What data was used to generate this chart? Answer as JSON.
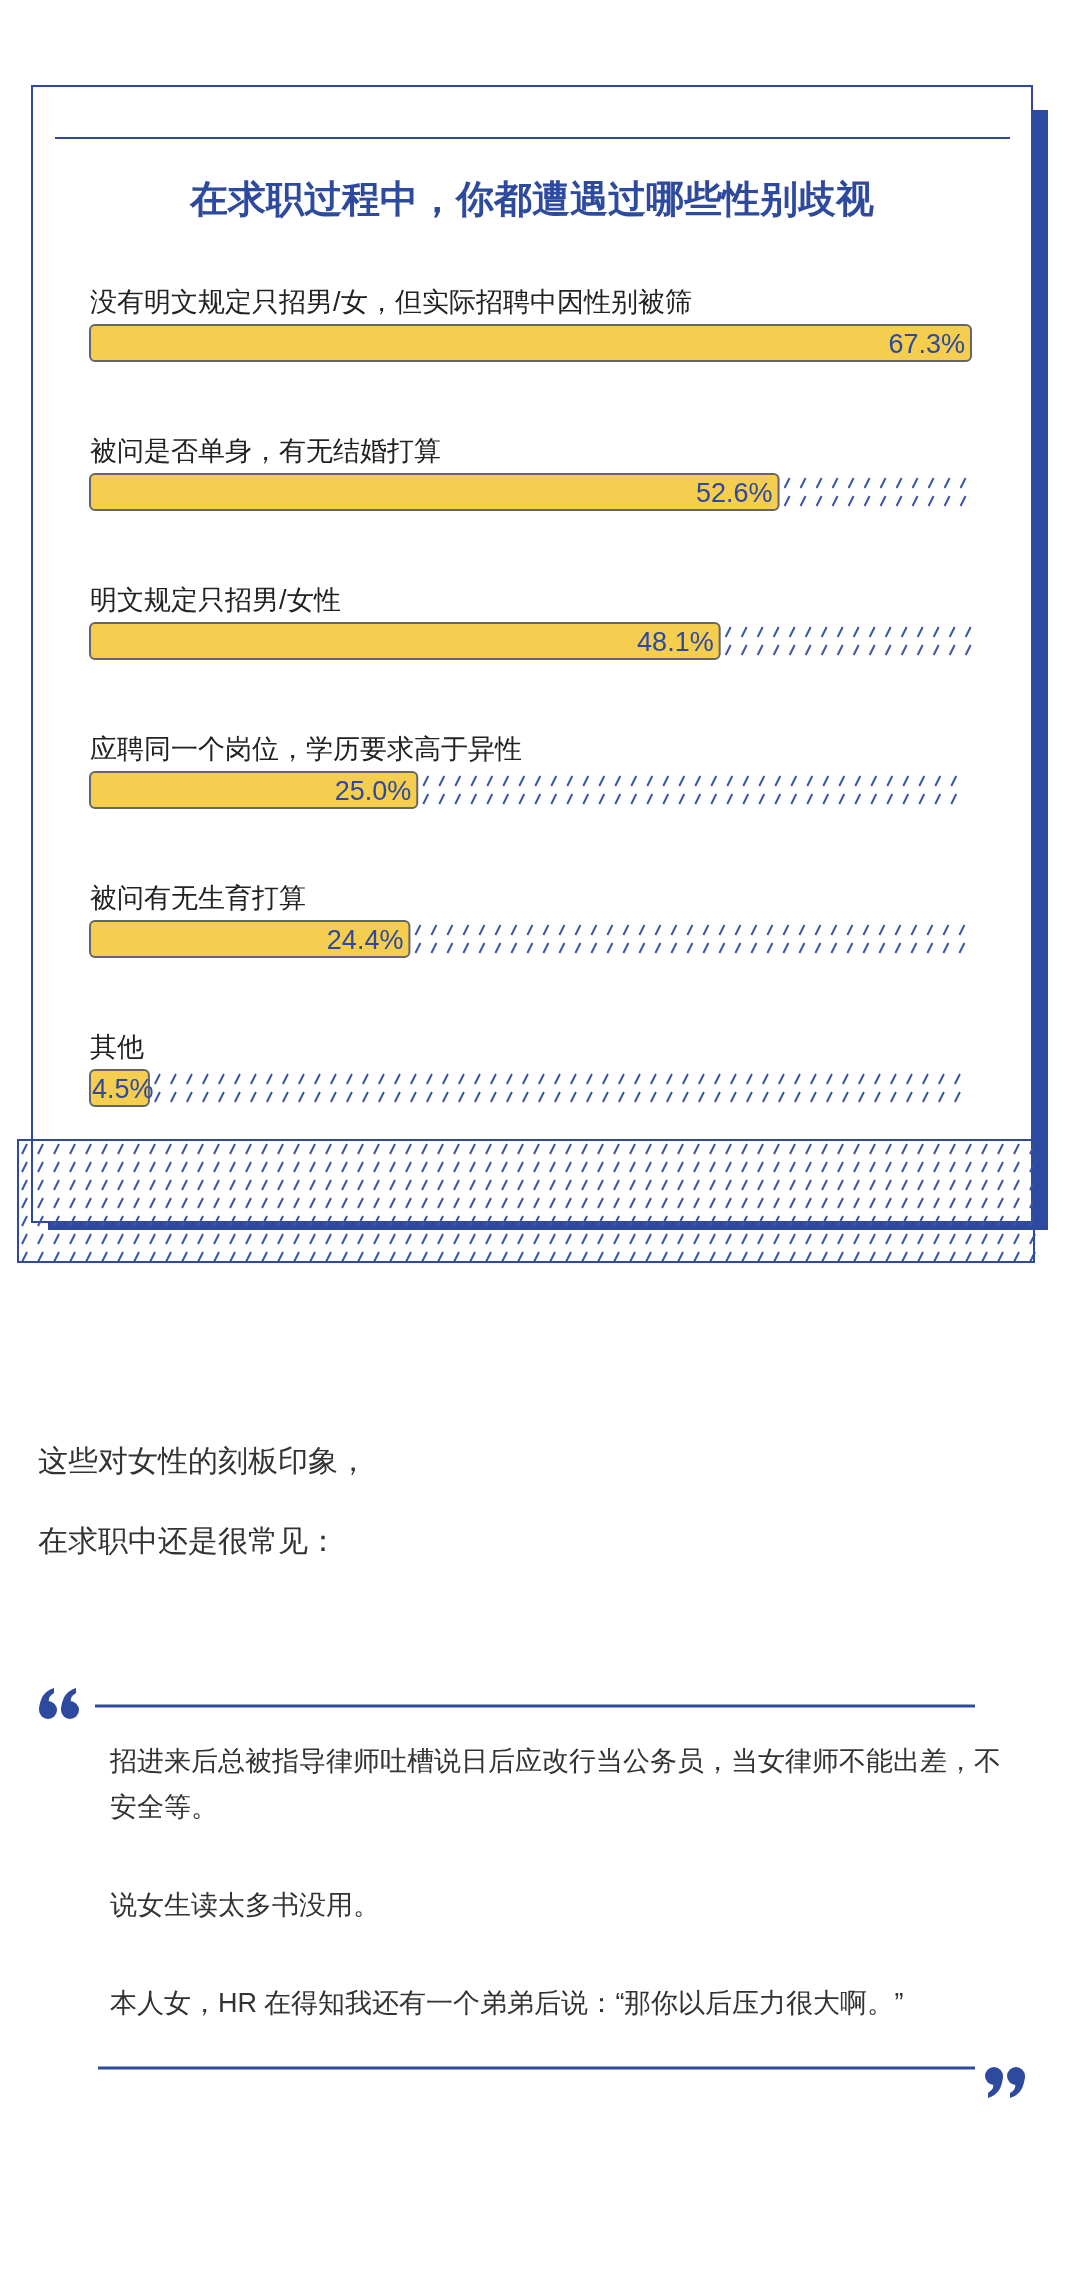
{
  "chart_data": {
    "type": "bar",
    "orientation": "horizontal",
    "title": "在求职过程中，你都遭遇过哪些性别歧视",
    "categories": [
      "没有明文规定只招男/女，但实际招聘中因性别被筛",
      "被问是否单身，有无结婚打算",
      "明文规定只招男/女性",
      "应聘同一个岗位，学历要求高于异性",
      "被问有无生育打算",
      "其他"
    ],
    "values": [
      67.3,
      52.6,
      48.1,
      25.0,
      24.4,
      4.5
    ],
    "value_labels": [
      "67.3%",
      "52.6%",
      "48.1%",
      "25.0%",
      "24.4%",
      "4.5%"
    ],
    "color": "#f5cd4f",
    "annotations": [
      "这些对女性的刻板印象，",
      "在求职中还是很常见：",
      "招进来后总被指导律师吐槽说日后应改行当公务员，当女律师不能出差，不安全等。",
      "说女生读太多书没用。",
      "本人女，HR 在得知我还有一个弟弟后说：“那你以后压力很大啊。”"
    ]
  }
}
